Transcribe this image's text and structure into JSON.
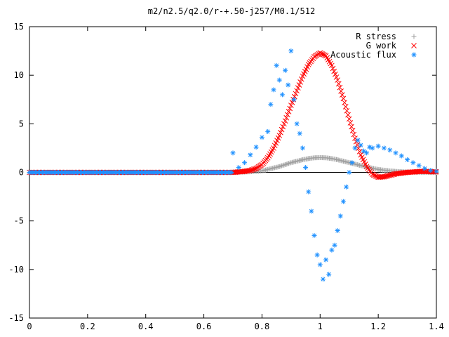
{
  "chart_data": {
    "type": "scatter",
    "title": "m2/n2.5/q2.0/r-+.50-j257/M0.1/512",
    "xlabel": "",
    "ylabel": "",
    "xlim": [
      0,
      1.4
    ],
    "ylim": [
      -15,
      15
    ],
    "x_ticks": [
      "0",
      "0.2",
      "0.4",
      "0.6",
      "0.8",
      "1",
      "1.2",
      "1.4"
    ],
    "y_ticks": [
      "15",
      "10",
      "5",
      "0",
      "-5",
      "-10",
      "-15"
    ],
    "x_tick_values": [
      0,
      0.2,
      0.4,
      0.6,
      0.8,
      1.0,
      1.2,
      1.4
    ],
    "y_tick_values": [
      15,
      10,
      5,
      0,
      -5,
      -10,
      -15
    ],
    "legend_position": "top-right",
    "grid": false,
    "series": [
      {
        "name": "R stress",
        "marker": "plus",
        "color": "#a0a0a0",
        "x": [
          0.7,
          0.75,
          0.78,
          0.8,
          0.82,
          0.84,
          0.86,
          0.88,
          0.9,
          0.92,
          0.94,
          0.96,
          0.98,
          1.0,
          1.02,
          1.04,
          1.06,
          1.08,
          1.1,
          1.12,
          1.14,
          1.16,
          1.18,
          1.2,
          1.22,
          1.24,
          1.26,
          1.28,
          1.3,
          1.35,
          1.4
        ],
        "y": [
          0.0,
          0.05,
          0.1,
          0.15,
          0.3,
          0.45,
          0.6,
          0.8,
          1.0,
          1.15,
          1.3,
          1.42,
          1.5,
          1.52,
          1.5,
          1.42,
          1.3,
          1.15,
          1.0,
          0.85,
          0.7,
          0.55,
          0.42,
          0.3,
          0.22,
          0.15,
          0.1,
          0.06,
          0.04,
          0.01,
          0.0
        ]
      },
      {
        "name": "G work",
        "marker": "cross",
        "color": "#ff0000",
        "x": [
          0.7,
          0.72,
          0.74,
          0.76,
          0.78,
          0.8,
          0.82,
          0.84,
          0.86,
          0.88,
          0.9,
          0.92,
          0.94,
          0.96,
          0.98,
          1.0,
          1.02,
          1.04,
          1.06,
          1.08,
          1.1,
          1.12,
          1.14,
          1.16,
          1.18,
          1.2,
          1.22,
          1.24,
          1.26,
          1.3,
          1.35,
          1.4
        ],
        "y": [
          0.0,
          0.05,
          0.1,
          0.2,
          0.4,
          0.8,
          1.5,
          2.5,
          3.8,
          5.3,
          6.9,
          8.4,
          9.9,
          11.1,
          11.9,
          12.3,
          12.0,
          11.0,
          9.5,
          7.6,
          5.5,
          3.5,
          1.8,
          0.6,
          -0.2,
          -0.5,
          -0.45,
          -0.3,
          -0.15,
          0.0,
          0.1,
          0.05
        ]
      },
      {
        "name": "Acoustic flux",
        "marker": "star",
        "color": "#1e90ff",
        "x": [
          0.7,
          0.72,
          0.74,
          0.76,
          0.78,
          0.8,
          0.82,
          0.83,
          0.84,
          0.85,
          0.86,
          0.87,
          0.88,
          0.89,
          0.9,
          0.91,
          0.92,
          0.93,
          0.94,
          0.95,
          0.96,
          0.97,
          0.98,
          0.99,
          1.0,
          1.01,
          1.02,
          1.03,
          1.04,
          1.05,
          1.06,
          1.07,
          1.08,
          1.09,
          1.1,
          1.11,
          1.12,
          1.13,
          1.14,
          1.15,
          1.16,
          1.17,
          1.18,
          1.2,
          1.22,
          1.24,
          1.26,
          1.28,
          1.3,
          1.32,
          1.34,
          1.36,
          1.38,
          1.4
        ],
        "y": [
          2.0,
          0.5,
          1.0,
          1.8,
          2.6,
          3.6,
          4.2,
          7.0,
          8.5,
          11.0,
          9.5,
          8.0,
          10.5,
          9.0,
          12.5,
          7.5,
          5.0,
          4.0,
          2.5,
          0.5,
          -2.0,
          -4.0,
          -6.5,
          -8.5,
          -9.5,
          -11.0,
          -9.0,
          -10.5,
          -8.0,
          -7.5,
          -6.0,
          -4.5,
          -3.0,
          -1.5,
          0.0,
          1.0,
          2.5,
          3.3,
          2.8,
          2.2,
          2.0,
          2.6,
          2.5,
          2.7,
          2.5,
          2.3,
          2.0,
          1.7,
          1.3,
          1.0,
          0.7,
          0.4,
          0.2,
          0.1
        ]
      }
    ]
  }
}
